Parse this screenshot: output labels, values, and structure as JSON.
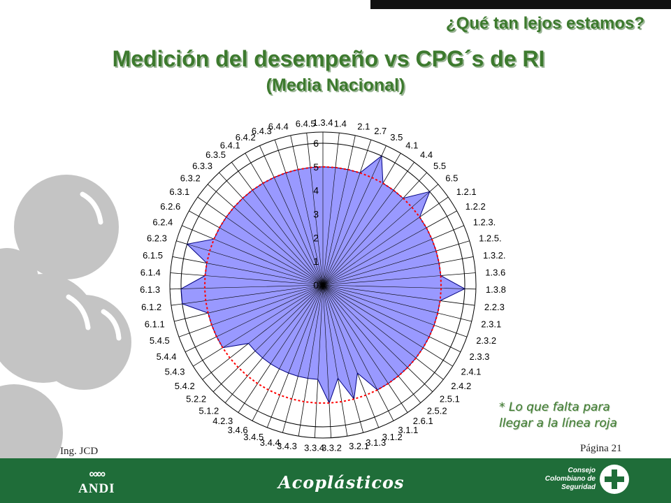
{
  "header": {
    "question": "¿Qué tan lejos estamos?",
    "title_line1": "Medición del desempeño vs CPG´s de RI",
    "title_line2": "(Media Nacional)"
  },
  "note": {
    "line1": "* Lo que falta para",
    "line2": "llegar a la línea roja"
  },
  "footer": {
    "author": "Ing. JCD",
    "page": "Página 21",
    "logo_andi": "ANDI",
    "logo_acoplasticos": "Acoplásticos",
    "logo_consejo": [
      "Consejo",
      "Colombiano de",
      "Seguridad"
    ]
  },
  "colors": {
    "brand_green": "#3d7a2e",
    "footer_green": "#1f6d39",
    "series_fill": "#9999ff",
    "series_stroke": "#000080",
    "target_line": "#ff0000",
    "decor_gray": "#c0c0c0"
  },
  "chart_data": {
    "type": "radar",
    "radial_ticks": [
      "0",
      "1",
      "2",
      "3",
      "4",
      "5",
      "6"
    ],
    "rmax": 6,
    "grid": true,
    "categories": [
      "1.3.4",
      "1.4",
      "2.1",
      "2.7",
      "3.5",
      "4.1",
      "4.4",
      "5.5",
      "6.5",
      "1.2.1",
      "1.2.2",
      "1.2.3.",
      "1.2.5.",
      "1.3.2.",
      "1.3.6",
      "1.3.8",
      "2.2.3",
      "2.3.1",
      "2.3.2",
      "2.3.3",
      "2.4.1",
      "2.4.2",
      "2.5.1",
      "2.5.2",
      "2.6.1",
      "3.1.1",
      "3.1.2",
      "3.1.3",
      "3.2.1",
      "3.3.2",
      "3.3.4",
      "3.4.3",
      "3.4.4",
      "3.4.5",
      "3.4.6",
      "4.2.3",
      "5.1.2",
      "5.2.2",
      "5.4.2",
      "5.4.3",
      "5.4.4",
      "5.4.5",
      "6.1.1",
      "6.1.2",
      "6.1.3",
      "6.1.4",
      "6.1.5",
      "6.2.3",
      "6.2.4",
      "6.2.6",
      "6.3.1",
      "6.3.2",
      "6.3.3",
      "6.3.5",
      "6.4.1",
      "6.4.2",
      "6.4.3",
      "6.4.4",
      "6.4.5"
    ],
    "series": [
      {
        "values": [
          5,
          5,
          5,
          5,
          6,
          5,
          5,
          5,
          6,
          5,
          5,
          5,
          5,
          5,
          5,
          6,
          5,
          5,
          5,
          5,
          5,
          5,
          5,
          5,
          5,
          5,
          4,
          5,
          4,
          5,
          4,
          4,
          4,
          4,
          4,
          4,
          4,
          4,
          4,
          5,
          5,
          5,
          5,
          6,
          6,
          5,
          5,
          6,
          5,
          5,
          5,
          5,
          5,
          5,
          5,
          5,
          5,
          5,
          5
        ]
      }
    ],
    "target_value": 5
  }
}
